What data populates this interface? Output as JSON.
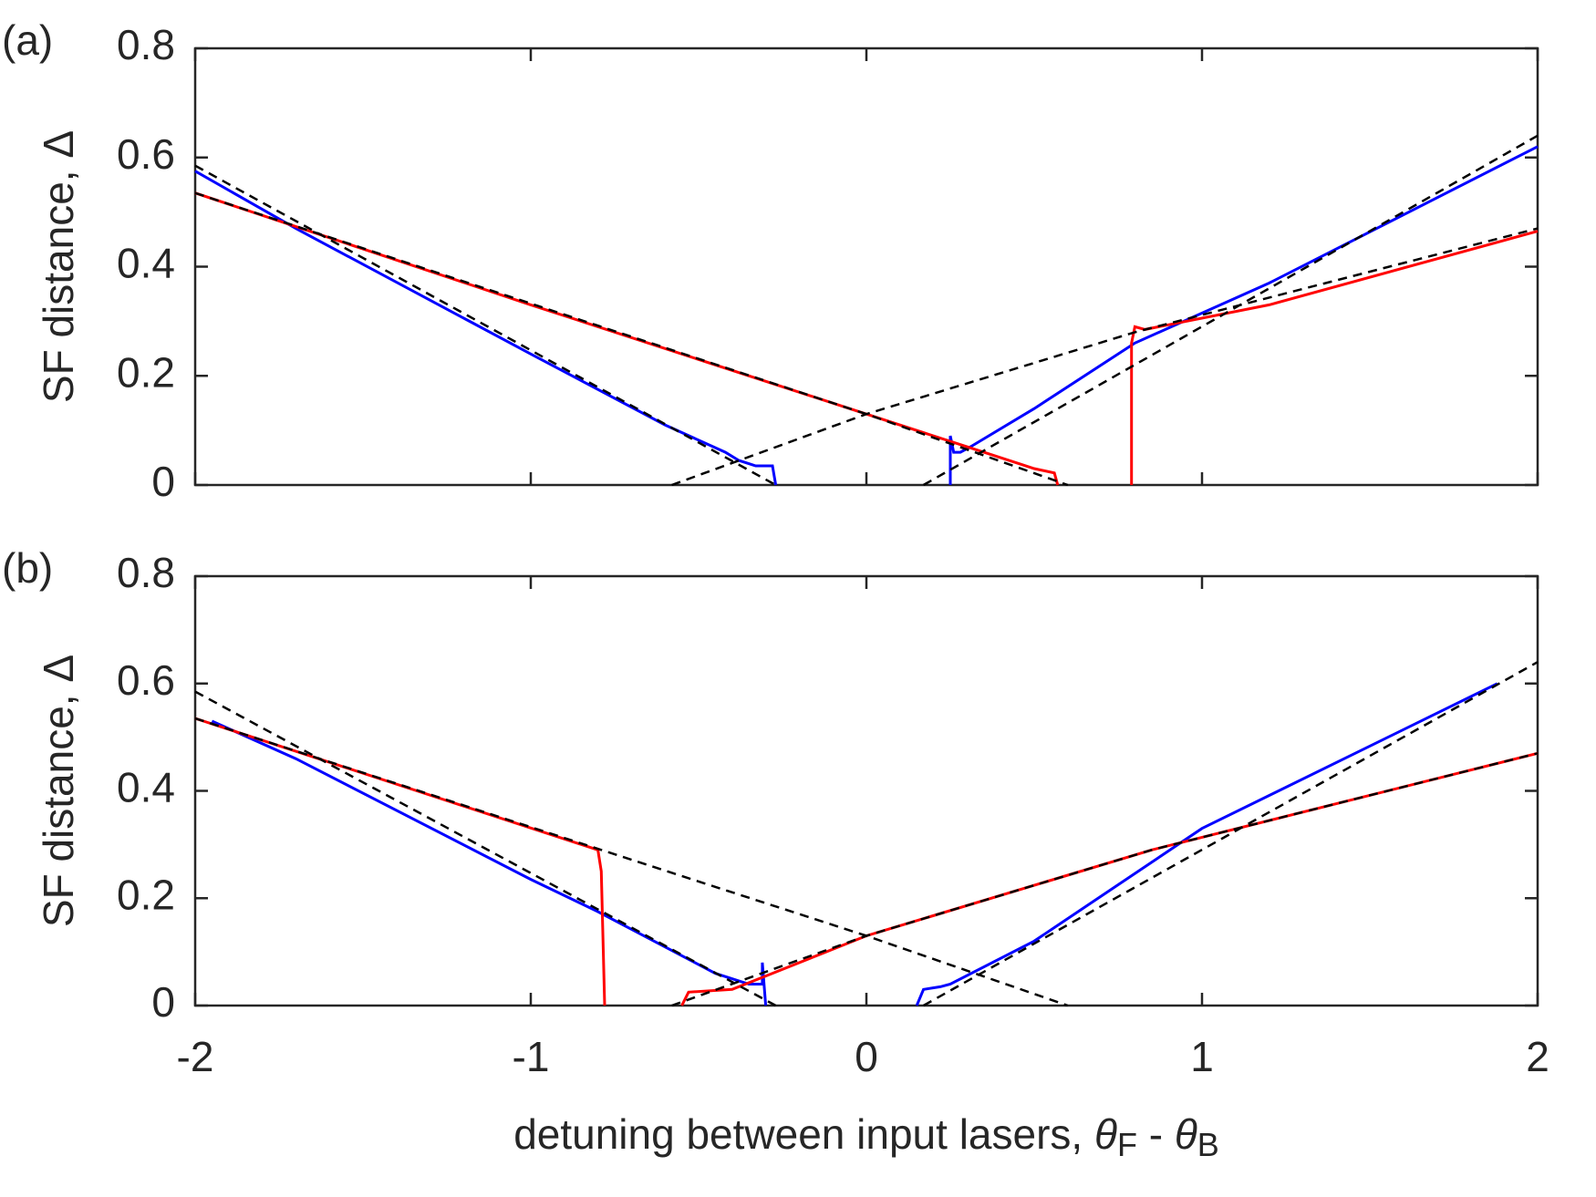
{
  "chart_data": [
    {
      "type": "line",
      "panel_label": "(a)",
      "ylabel": "SF distance, Δ",
      "xlim": [
        -2,
        2
      ],
      "xticks": [
        -2,
        -1,
        0,
        1,
        2
      ],
      "ylim": [
        0,
        0.8
      ],
      "yticks": [
        0,
        0.2,
        0.4,
        0.6,
        0.8
      ],
      "series": [
        {
          "color": "#0000ff",
          "style": "solid",
          "x": [
            -2,
            -1.7,
            -1,
            -0.6,
            -0.42,
            -0.38,
            -0.33,
            -0.28,
            -0.27,
            null,
            0.25,
            0.25,
            0.26,
            0.28,
            0.31,
            0.5,
            0.8,
            1.2,
            2
          ],
          "values": [
            0.575,
            0.47,
            0.24,
            0.11,
            0.06,
            0.045,
            0.035,
            0.035,
            0,
            null,
            0,
            0.09,
            0.06,
            0.06,
            0.07,
            0.14,
            0.26,
            0.37,
            0.62
          ]
        },
        {
          "color": "#ff0000",
          "style": "solid",
          "x": [
            -2,
            -1,
            0,
            0.3,
            0.5,
            0.56,
            0.57,
            null,
            0.79,
            0.79,
            0.8,
            0.83,
            1.2,
            2
          ],
          "values": [
            0.535,
            0.33,
            0.13,
            0.07,
            0.03,
            0.022,
            0,
            null,
            0,
            0.26,
            0.29,
            0.285,
            0.33,
            0.465
          ]
        },
        {
          "color": "#000000",
          "style": "dashed",
          "x": [
            -2,
            -0.27
          ],
          "values": [
            0.585,
            0
          ]
        },
        {
          "color": "#000000",
          "style": "dashed",
          "x": [
            -2,
            0,
            0.6
          ],
          "values": [
            0.535,
            0.13,
            0
          ]
        },
        {
          "color": "#000000",
          "style": "dashed",
          "x": [
            -0.58,
            0,
            0.8,
            2
          ],
          "values": [
            0,
            0.13,
            0.28,
            0.47
          ]
        },
        {
          "color": "#000000",
          "style": "dashed",
          "x": [
            0.17,
            2
          ],
          "values": [
            0,
            0.64
          ]
        }
      ]
    },
    {
      "type": "line",
      "panel_label": "(b)",
      "ylabel": "SF distance, Δ",
      "xlabel": [
        "detuning between input lasers, ",
        "θ",
        "F",
        " - ",
        "θ",
        "B"
      ],
      "xlim": [
        -2,
        2
      ],
      "xticks": [
        -2,
        -1,
        0,
        1,
        2
      ],
      "ylim": [
        0,
        0.8
      ],
      "yticks": [
        0,
        0.2,
        0.4,
        0.6,
        0.8
      ],
      "series": [
        {
          "color": "#0000ff",
          "style": "solid",
          "x": [
            -1.95,
            -1.7,
            -1,
            -0.8,
            -0.45,
            -0.35,
            -0.31,
            -0.31,
            -0.3,
            null,
            0.15,
            0.17,
            0.22,
            0.25,
            0.5,
            1,
            1.88
          ],
          "values": [
            0.53,
            0.46,
            0.235,
            0.175,
            0.06,
            0.04,
            0.04,
            0.08,
            0,
            null,
            0,
            0.03,
            0.035,
            0.04,
            0.12,
            0.33,
            0.6
          ]
        },
        {
          "color": "#ff0000",
          "style": "solid",
          "x": [
            -2,
            -0.8,
            -0.79,
            -0.78,
            null,
            -0.55,
            -0.53,
            -0.4,
            -0.3,
            0,
            0.85,
            2
          ],
          "values": [
            0.535,
            0.29,
            0.25,
            0,
            null,
            0,
            0.025,
            0.03,
            0.055,
            0.13,
            0.29,
            0.47
          ]
        },
        {
          "color": "#000000",
          "style": "dashed",
          "x": [
            -2,
            -0.27
          ],
          "values": [
            0.585,
            0
          ]
        },
        {
          "color": "#000000",
          "style": "dashed",
          "x": [
            -2,
            0,
            0.6
          ],
          "values": [
            0.535,
            0.13,
            0
          ]
        },
        {
          "color": "#000000",
          "style": "dashed",
          "x": [
            -0.58,
            0,
            0.85,
            2
          ],
          "values": [
            0,
            0.13,
            0.29,
            0.47
          ]
        },
        {
          "color": "#000000",
          "style": "dashed",
          "x": [
            0.17,
            2
          ],
          "values": [
            0,
            0.64
          ]
        }
      ]
    }
  ]
}
